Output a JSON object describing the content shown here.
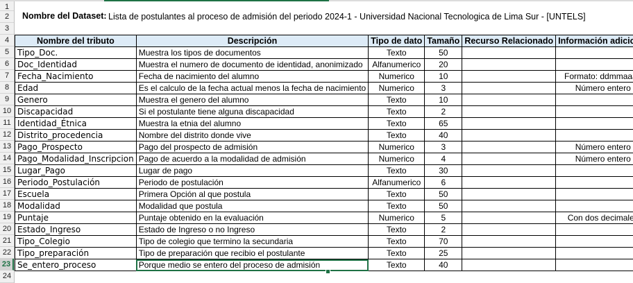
{
  "row_numbers": [
    "1",
    "2",
    "3",
    "4",
    "5",
    "6",
    "7",
    "8",
    "9",
    "10",
    "11",
    "12",
    "13",
    "14",
    "15",
    "16",
    "17",
    "18",
    "19",
    "20",
    "21",
    "22",
    "23",
    "24"
  ],
  "dataset": {
    "label": "Nombre del Dataset:",
    "value": "Lista de postulantes al proceso de admisión del periodo 2024-1  - Universidad Nacional Tecnologica de Lima Sur - [UNTELS]"
  },
  "headers": {
    "name": "Nombre del tributo",
    "description": "Descripción",
    "type": "Tipo de dato",
    "size": "Tamaño",
    "resource": "Recurso Relacionado",
    "info": "Información adicional"
  },
  "rows": [
    {
      "name": "Tipo_Doc.",
      "description": "Muestra los tipos de documentos",
      "type": "Texto",
      "size": "50",
      "resource": "",
      "info": ""
    },
    {
      "name": "Doc_Identidad",
      "description": "Muestra el numero de documento de identidad, anonimizado",
      "type": "Alfanumerico",
      "size": "20",
      "resource": "",
      "info": ""
    },
    {
      "name": "Fecha_Nacimiento",
      "description": "Fecha de nacimiento del alumno",
      "type": "Numerico",
      "size": "10",
      "resource": "",
      "info": "Formato: ddmmaaaa"
    },
    {
      "name": "Edad",
      "description": "Es el calculo de la fecha actual menos la fecha de nacimiento",
      "type": "Numerico",
      "size": "3",
      "resource": "",
      "info": "Número entero"
    },
    {
      "name": "Genero",
      "description": "Muestra el genero del alumno",
      "type": "Texto",
      "size": "10",
      "resource": "",
      "info": ""
    },
    {
      "name": "Discapacidad",
      "description": "Si el postulante tiene alguna discapacidad",
      "type": "Texto",
      "size": "2",
      "resource": "",
      "info": ""
    },
    {
      "name": "Identidad_Étnica",
      "description": "Muestra la etnia del alumno",
      "type": "Texto",
      "size": "65",
      "resource": "",
      "info": ""
    },
    {
      "name": "Distrito_procedencia",
      "description": "Nombre del distrito donde vive",
      "type": "Texto",
      "size": "40",
      "resource": "",
      "info": ""
    },
    {
      "name": "Pago_Prospecto",
      "description": "Pago del prospecto de admisión",
      "type": "Numerico",
      "size": "3",
      "resource": "",
      "info": "Número entero"
    },
    {
      "name": "Pago_Modalidad_Inscripcion",
      "description": "Pago de acuerdo a la modalidad de admisión",
      "type": "Numerico",
      "size": "4",
      "resource": "",
      "info": "Número entero"
    },
    {
      "name": "Lugar_Pago",
      "description": "Lugar de pago",
      "type": "Texto",
      "size": "30",
      "resource": "",
      "info": ""
    },
    {
      "name": "Periodo_Postulación",
      "description": "Periodo de postulación",
      "type": "Alfanumerico",
      "size": "6",
      "resource": "",
      "info": ""
    },
    {
      "name": "Escuela",
      "description": "Primera Opción al que postula",
      "type": "Texto",
      "size": "50",
      "resource": "",
      "info": ""
    },
    {
      "name": "Modalidad",
      "description": "Modalidad que postula",
      "type": "Texto",
      "size": "50",
      "resource": "",
      "info": ""
    },
    {
      "name": "Puntaje",
      "description": "Puntaje obtenido en la evaluación",
      "type": "Numerico",
      "size": "5",
      "resource": "",
      "info": "Con dos decimales"
    },
    {
      "name": "Estado_Ingreso",
      "description": "Estado de Ingreso o no Ingreso",
      "type": "Texto",
      "size": "2",
      "resource": "",
      "info": ""
    },
    {
      "name": "Tipo_Colegio",
      "description": "Tipo de colegio que termino la secundaria",
      "type": "Texto",
      "size": "70",
      "resource": "",
      "info": ""
    },
    {
      "name": "Tipo_preparación",
      "description": "Tipo de preparación que recibio el postulante",
      "type": "Texto",
      "size": "25",
      "resource": "",
      "info": ""
    },
    {
      "name": "Se_entero_proceso",
      "description": "Porque medio se entero del proceso de admisión",
      "type": "Texto",
      "size": "40",
      "resource": "",
      "info": ""
    }
  ],
  "colors": {
    "header_fill": "#ddebf7",
    "selection": "#1e7145"
  }
}
